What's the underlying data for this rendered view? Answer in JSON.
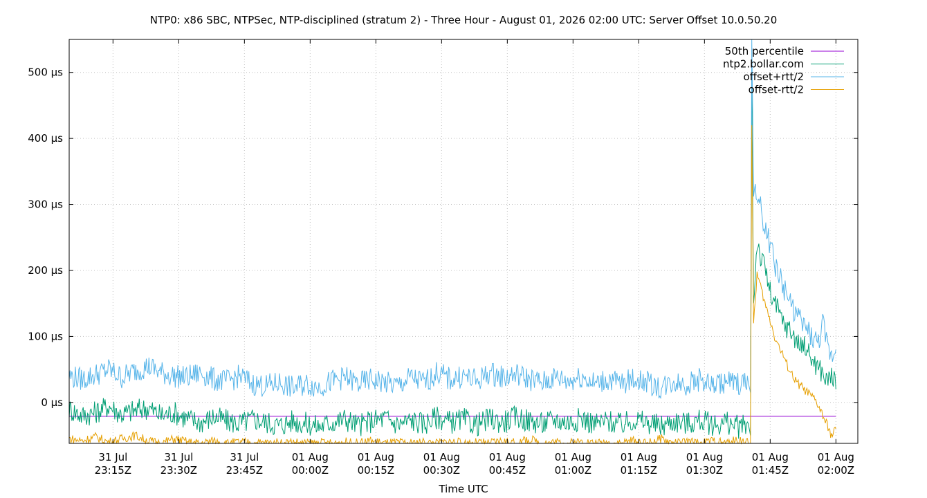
{
  "chart_data": {
    "type": "line",
    "title": "NTP0: x86 SBC, NTPSec, NTP-disciplined (stratum 2) - Three Hour - August 01, 2026 02:00 UTC: Server Offset 10.0.50.20",
    "xlabel": "Time UTC",
    "ylabel": "",
    "x_range_minutes": [
      -165,
      0
    ],
    "ylim": [
      -62,
      550
    ],
    "y_unit": "µs",
    "grid": true,
    "legend_position": "top-right",
    "x_ticks": [
      {
        "minutes": -165,
        "line1": "31 Jul",
        "line2": "23:15Z"
      },
      {
        "minutes": -150,
        "line1": "31 Jul",
        "line2": "23:30Z"
      },
      {
        "minutes": -135,
        "line1": "31 Jul",
        "line2": "23:45Z"
      },
      {
        "minutes": -120,
        "line1": "01 Aug",
        "line2": "00:00Z"
      },
      {
        "minutes": -105,
        "line1": "01 Aug",
        "line2": "00:15Z"
      },
      {
        "minutes": -90,
        "line1": "01 Aug",
        "line2": "00:30Z"
      },
      {
        "minutes": -75,
        "line1": "01 Aug",
        "line2": "00:45Z"
      },
      {
        "minutes": -60,
        "line1": "01 Aug",
        "line2": "01:00Z"
      },
      {
        "minutes": -45,
        "line1": "01 Aug",
        "line2": "01:15Z"
      },
      {
        "minutes": -30,
        "line1": "01 Aug",
        "line2": "01:30Z"
      },
      {
        "minutes": -15,
        "line1": "01 Aug",
        "line2": "01:45Z"
      },
      {
        "minutes": 0,
        "line1": "01 Aug",
        "line2": "02:00Z"
      }
    ],
    "y_ticks": [
      {
        "value": 0,
        "label": "0 µs"
      },
      {
        "value": 100,
        "label": "100 µs"
      },
      {
        "value": 200,
        "label": "200 µs"
      },
      {
        "value": 300,
        "label": "300 µs"
      },
      {
        "value": 400,
        "label": "400 µs"
      },
      {
        "value": 500,
        "label": "500 µs"
      }
    ],
    "series": [
      {
        "name": "50th percentile",
        "color": "#9400d3",
        "points": [
          [
            -175,
            -21
          ],
          [
            0,
            -21
          ]
        ]
      },
      {
        "name": "ntp2.bollar.com",
        "color": "#009e73",
        "points": [
          [
            -175,
            -10
          ],
          [
            -172,
            -20
          ],
          [
            -169,
            -15
          ],
          [
            -166,
            -5
          ],
          [
            -163,
            -18
          ],
          [
            -160,
            -12
          ],
          [
            -157,
            -8
          ],
          [
            -154,
            -20
          ],
          [
            -151,
            -15
          ],
          [
            -148,
            -25
          ],
          [
            -145,
            -30
          ],
          [
            -142,
            -22
          ],
          [
            -139,
            -28
          ],
          [
            -136,
            -32
          ],
          [
            -133,
            -25
          ],
          [
            -130,
            -30
          ],
          [
            -127,
            -35
          ],
          [
            -124,
            -28
          ],
          [
            -121,
            -32
          ],
          [
            -118,
            -36
          ],
          [
            -115,
            -30
          ],
          [
            -112,
            -25
          ],
          [
            -109,
            -35
          ],
          [
            -106,
            -28
          ],
          [
            -103,
            -24
          ],
          [
            -100,
            -33
          ],
          [
            -97,
            -27
          ],
          [
            -94,
            -32
          ],
          [
            -91,
            -22
          ],
          [
            -88,
            -30
          ],
          [
            -85,
            -26
          ],
          [
            -82,
            -34
          ],
          [
            -79,
            -25
          ],
          [
            -76,
            -30
          ],
          [
            -73,
            -22
          ],
          [
            -70,
            -28
          ],
          [
            -67,
            -32
          ],
          [
            -64,
            -26
          ],
          [
            -61,
            -30
          ],
          [
            -58,
            -24
          ],
          [
            -55,
            -33
          ],
          [
            -52,
            -28
          ],
          [
            -49,
            -34
          ],
          [
            -46,
            -26
          ],
          [
            -43,
            -31
          ],
          [
            -40,
            -36
          ],
          [
            -37,
            -28
          ],
          [
            -34,
            -32
          ],
          [
            -31,
            -27
          ],
          [
            -28,
            -34
          ],
          [
            -25,
            -30
          ],
          [
            -22,
            -38
          ],
          [
            -20,
            -32
          ],
          [
            -19.5,
            -50
          ],
          [
            -19.2,
            480
          ],
          [
            -18.8,
            150
          ],
          [
            -18,
            245
          ],
          [
            -17,
            215
          ],
          [
            -16,
            200
          ],
          [
            -15,
            165
          ],
          [
            -14,
            150
          ],
          [
            -13,
            135
          ],
          [
            -12,
            120
          ],
          [
            -11,
            112
          ],
          [
            -10,
            105
          ],
          [
            -9,
            95
          ],
          [
            -8,
            82
          ],
          [
            -7,
            90
          ],
          [
            -6,
            70
          ],
          [
            -5,
            62
          ],
          [
            -4,
            52
          ],
          [
            -3,
            45
          ],
          [
            -2,
            30
          ],
          [
            -1,
            45
          ],
          [
            0,
            20
          ]
        ]
      },
      {
        "name": "offset+rtt/2",
        "color": "#56b4e9",
        "points": [
          [
            -175,
            40
          ],
          [
            -172,
            35
          ],
          [
            -169,
            42
          ],
          [
            -166,
            50
          ],
          [
            -163,
            38
          ],
          [
            -160,
            48
          ],
          [
            -157,
            55
          ],
          [
            -154,
            45
          ],
          [
            -151,
            40
          ],
          [
            -148,
            38
          ],
          [
            -145,
            45
          ],
          [
            -142,
            35
          ],
          [
            -139,
            32
          ],
          [
            -136,
            40
          ],
          [
            -133,
            28
          ],
          [
            -130,
            25
          ],
          [
            -127,
            30
          ],
          [
            -124,
            22
          ],
          [
            -121,
            28
          ],
          [
            -118,
            24
          ],
          [
            -115,
            32
          ],
          [
            -112,
            38
          ],
          [
            -109,
            28
          ],
          [
            -106,
            35
          ],
          [
            -103,
            30
          ],
          [
            -100,
            25
          ],
          [
            -97,
            38
          ],
          [
            -94,
            30
          ],
          [
            -91,
            45
          ],
          [
            -88,
            35
          ],
          [
            -85,
            40
          ],
          [
            -82,
            32
          ],
          [
            -79,
            45
          ],
          [
            -76,
            38
          ],
          [
            -73,
            42
          ],
          [
            -70,
            36
          ],
          [
            -67,
            30
          ],
          [
            -64,
            38
          ],
          [
            -61,
            32
          ],
          [
            -58,
            40
          ],
          [
            -55,
            28
          ],
          [
            -52,
            35
          ],
          [
            -49,
            28
          ],
          [
            -46,
            36
          ],
          [
            -43,
            30
          ],
          [
            -40,
            22
          ],
          [
            -37,
            32
          ],
          [
            -34,
            28
          ],
          [
            -31,
            35
          ],
          [
            -28,
            25
          ],
          [
            -25,
            32
          ],
          [
            -22,
            28
          ],
          [
            -20,
            30
          ],
          [
            -19.5,
            15
          ],
          [
            -19.2,
            550
          ],
          [
            -18.8,
            330
          ],
          [
            -18,
            310
          ],
          [
            -17,
            290
          ],
          [
            -16,
            260
          ],
          [
            -15,
            240
          ],
          [
            -14,
            210
          ],
          [
            -13,
            195
          ],
          [
            -12,
            175
          ],
          [
            -11,
            160
          ],
          [
            -10,
            145
          ],
          [
            -9,
            135
          ],
          [
            -8,
            120
          ],
          [
            -7,
            115
          ],
          [
            -6,
            105
          ],
          [
            -5,
            95
          ],
          [
            -4,
            90
          ],
          [
            -3,
            120
          ],
          [
            -2,
            85
          ],
          [
            -1,
            70
          ],
          [
            0,
            80
          ]
        ]
      },
      {
        "name": "offset-rtt/2",
        "color": "#e69f00",
        "points": [
          [
            -175,
            -55
          ],
          [
            -172,
            -58
          ],
          [
            -169,
            -52
          ],
          [
            -166,
            -60
          ],
          [
            -163,
            -55
          ],
          [
            -160,
            -50
          ],
          [
            -157,
            -58
          ],
          [
            -154,
            -62
          ],
          [
            -151,
            -55
          ],
          [
            -148,
            -60
          ],
          [
            -145,
            -62
          ],
          [
            -142,
            -58
          ],
          [
            -139,
            -62
          ],
          [
            -136,
            -60
          ],
          [
            -133,
            -62
          ],
          [
            -130,
            -61
          ],
          [
            -127,
            -62
          ],
          [
            -124,
            -60
          ],
          [
            -121,
            -62
          ],
          [
            -118,
            -61
          ],
          [
            -115,
            -62
          ],
          [
            -112,
            -60
          ],
          [
            -109,
            -62
          ],
          [
            -106,
            -58
          ],
          [
            -103,
            -62
          ],
          [
            -100,
            -61
          ],
          [
            -97,
            -62
          ],
          [
            -94,
            -60
          ],
          [
            -91,
            -62
          ],
          [
            -88,
            -59
          ],
          [
            -85,
            -62
          ],
          [
            -82,
            -61
          ],
          [
            -79,
            -62
          ],
          [
            -76,
            -58
          ],
          [
            -73,
            -62
          ],
          [
            -70,
            -56
          ],
          [
            -67,
            -62
          ],
          [
            -64,
            -60
          ],
          [
            -61,
            -62
          ],
          [
            -58,
            -59
          ],
          [
            -55,
            -62
          ],
          [
            -52,
            -61
          ],
          [
            -49,
            -62
          ],
          [
            -46,
            -58
          ],
          [
            -43,
            -62
          ],
          [
            -40,
            -55
          ],
          [
            -37,
            -62
          ],
          [
            -34,
            -60
          ],
          [
            -31,
            -62
          ],
          [
            -28,
            -58
          ],
          [
            -25,
            -62
          ],
          [
            -22,
            -56
          ],
          [
            -20,
            -62
          ],
          [
            -19.5,
            -62
          ],
          [
            -19.2,
            420
          ],
          [
            -18.8,
            120
          ],
          [
            -18,
            195
          ],
          [
            -17,
            170
          ],
          [
            -16,
            145
          ],
          [
            -15,
            125
          ],
          [
            -14,
            100
          ],
          [
            -13,
            85
          ],
          [
            -12,
            70
          ],
          [
            -11,
            55
          ],
          [
            -10,
            42
          ],
          [
            -9,
            30
          ],
          [
            -8,
            25
          ],
          [
            -7,
            18
          ],
          [
            -6,
            12
          ],
          [
            -5,
            5
          ],
          [
            -4,
            -5
          ],
          [
            -3,
            -20
          ],
          [
            -2,
            -35
          ],
          [
            -1,
            -50
          ],
          [
            0,
            -40
          ]
        ]
      }
    ]
  }
}
